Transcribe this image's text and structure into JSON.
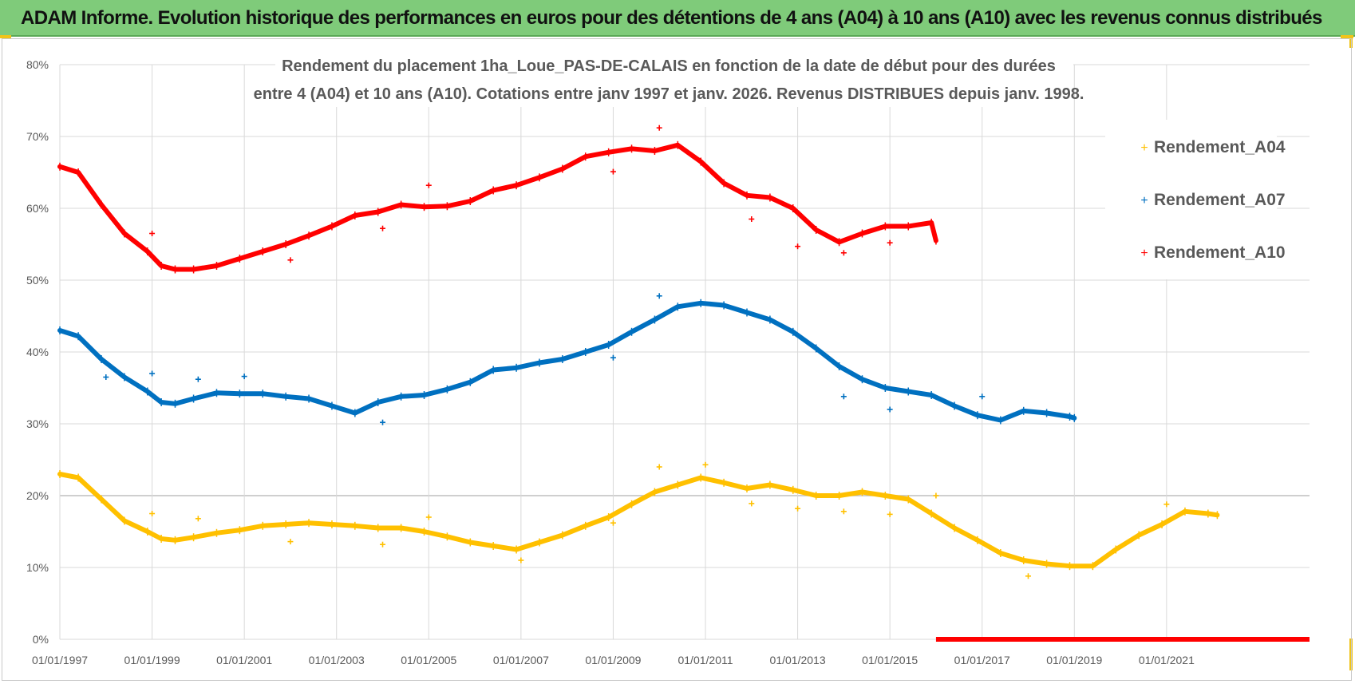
{
  "banner": {
    "title": "ADAM Informe. Evolution historique des performances en euros pour des détentions de 4 ans (A04) à 10 ans (A10) avec les revenus connus distribués"
  },
  "colors": {
    "banner_bg": "#7fcb7a",
    "A04": "#ffc000",
    "A07": "#0070c0",
    "A10": "#ff0000",
    "grid": "#d9d9d9",
    "text": "#595959"
  },
  "chart_data": {
    "type": "scatter",
    "title_line1": "Rendement du placement 1ha_Loue_PAS-DE-CALAIS en fonction de la date de début pour des durées",
    "title_line2": "entre 4 (A04) et 10 ans (A10). Cotations entre janv 1997 et janv. 2026. Revenus DISTRIBUES depuis janv. 1998.",
    "xlabel": "",
    "ylabel": "",
    "xlim": [
      1997.0,
      2024.1
    ],
    "ylim": [
      0,
      80
    ],
    "y_ticks": [
      0,
      10,
      20,
      30,
      40,
      50,
      60,
      70,
      80
    ],
    "y_tick_labels": [
      "0%",
      "10%",
      "20%",
      "30%",
      "40%",
      "50%",
      "60%",
      "70%",
      "80%"
    ],
    "x_ticks": [
      1997,
      1999,
      2001,
      2003,
      2005,
      2007,
      2009,
      2011,
      2013,
      2015,
      2017,
      2019,
      2021
    ],
    "x_tick_labels": [
      "01/01/1997",
      "01/01/1999",
      "01/01/2001",
      "01/01/2003",
      "01/01/2005",
      "01/01/2007",
      "01/01/2009",
      "01/01/2011",
      "01/01/2013",
      "01/01/2015",
      "01/01/2017",
      "01/01/2019",
      "01/01/2021"
    ],
    "legend": {
      "position": "top-right"
    },
    "series": [
      {
        "name": "Rendement_A04",
        "color": "#ffc000",
        "x": [
          1997.0,
          1997.4,
          1997.9,
          1998.4,
          1998.9,
          1999.2,
          1999.5,
          1999.9,
          2000.4,
          2000.9,
          2001.4,
          2001.9,
          2002.4,
          2002.9,
          2003.4,
          2003.9,
          2004.4,
          2004.9,
          2005.4,
          2005.9,
          2006.4,
          2006.9,
          2007.4,
          2007.9,
          2008.4,
          2008.9,
          2009.4,
          2009.9,
          2010.4,
          2010.9,
          2011.4,
          2011.9,
          2012.4,
          2012.9,
          2013.4,
          2013.9,
          2014.4,
          2014.9,
          2015.4,
          2015.9,
          2016.4,
          2016.9,
          2017.4,
          2017.9,
          2018.4,
          2018.9,
          2019.4,
          2019.9,
          2020.4,
          2020.9,
          2021.4,
          2021.9,
          2022.1
        ],
        "y": [
          23.0,
          22.5,
          19.5,
          16.5,
          15.0,
          14.0,
          13.8,
          14.2,
          14.8,
          15.2,
          15.8,
          16.0,
          16.2,
          16.0,
          15.8,
          15.5,
          15.5,
          15.0,
          14.3,
          13.5,
          13.0,
          12.5,
          13.5,
          14.5,
          15.8,
          17.0,
          18.8,
          20.5,
          21.5,
          22.5,
          21.8,
          21.0,
          21.5,
          20.8,
          20.0,
          20.0,
          20.5,
          20.0,
          19.5,
          17.5,
          15.5,
          13.8,
          12.0,
          11.0,
          10.5,
          10.2,
          10.2,
          12.5,
          14.5,
          16.0,
          17.8,
          17.5,
          17.3
        ],
        "outliers_x": [
          1999.0,
          2000.0,
          2002.0,
          2004.0,
          2005.0,
          2007.0,
          2009.0,
          2010.0,
          2011.0,
          2012.0,
          2013.0,
          2014.0,
          2015.0,
          2016.0,
          2018.0,
          2021.0
        ],
        "outliers_y": [
          17.5,
          16.8,
          13.6,
          13.2,
          17.0,
          11.0,
          16.2,
          24.0,
          24.3,
          18.9,
          18.2,
          17.8,
          17.4,
          20.0,
          8.8,
          18.8
        ]
      },
      {
        "name": "Rendement_A07",
        "color": "#0070c0",
        "x": [
          1997.0,
          1997.4,
          1997.9,
          1998.4,
          1998.9,
          1999.2,
          1999.5,
          1999.9,
          2000.4,
          2000.9,
          2001.4,
          2001.9,
          2002.4,
          2002.9,
          2003.4,
          2003.9,
          2004.4,
          2004.9,
          2005.4,
          2005.9,
          2006.4,
          2006.9,
          2007.4,
          2007.9,
          2008.4,
          2008.9,
          2009.4,
          2009.9,
          2010.4,
          2010.9,
          2011.4,
          2011.9,
          2012.4,
          2012.9,
          2013.4,
          2013.9,
          2014.4,
          2014.9,
          2015.4,
          2015.9,
          2016.4,
          2016.9,
          2017.4,
          2017.9,
          2018.4,
          2018.9,
          2019.0
        ],
        "y": [
          43.0,
          42.2,
          39.0,
          36.5,
          34.5,
          33.0,
          32.8,
          33.5,
          34.3,
          34.2,
          34.2,
          33.8,
          33.5,
          32.5,
          31.5,
          33.0,
          33.8,
          34.0,
          34.8,
          35.8,
          37.5,
          37.8,
          38.5,
          39.0,
          40.0,
          41.0,
          42.8,
          44.5,
          46.3,
          46.8,
          46.5,
          45.5,
          44.5,
          42.8,
          40.5,
          38.0,
          36.2,
          35.0,
          34.5,
          34.0,
          32.5,
          31.2,
          30.5,
          31.8,
          31.5,
          31.0,
          30.8
        ],
        "outliers_x": [
          1998.0,
          1999.0,
          2000.0,
          2001.0,
          2004.0,
          2009.0,
          2010.0,
          2014.0,
          2015.0,
          2017.0
        ],
        "outliers_y": [
          36.5,
          37.0,
          36.2,
          36.6,
          30.2,
          39.2,
          47.8,
          33.8,
          32.0,
          33.8
        ]
      },
      {
        "name": "Rendement_A10",
        "color": "#ff0000",
        "x": [
          1997.0,
          1997.4,
          1997.9,
          1998.4,
          1998.9,
          1999.2,
          1999.5,
          1999.9,
          2000.4,
          2000.9,
          2001.4,
          2001.9,
          2002.4,
          2002.9,
          2003.4,
          2003.9,
          2004.4,
          2004.9,
          2005.4,
          2005.9,
          2006.4,
          2006.9,
          2007.4,
          2007.9,
          2008.4,
          2008.9,
          2009.4,
          2009.9,
          2010.4,
          2010.9,
          2011.4,
          2011.9,
          2012.4,
          2012.9,
          2013.4,
          2013.9,
          2014.4,
          2014.9,
          2015.4,
          2015.9,
          2016.0
        ],
        "y": [
          65.8,
          65.0,
          60.5,
          56.5,
          54.0,
          52.0,
          51.5,
          51.5,
          52.0,
          53.0,
          54.0,
          55.0,
          56.2,
          57.5,
          59.0,
          59.5,
          60.5,
          60.2,
          60.3,
          61.0,
          62.5,
          63.2,
          64.3,
          65.5,
          67.2,
          67.8,
          68.3,
          68.0,
          68.8,
          66.5,
          63.5,
          61.8,
          61.5,
          60.0,
          57.0,
          55.3,
          56.5,
          57.5,
          57.5,
          58.0,
          55.5
        ],
        "outliers_x": [
          1999.0,
          2002.0,
          2004.0,
          2005.0,
          2009.0,
          2010.0,
          2012.0,
          2013.0,
          2014.0,
          2015.0
        ],
        "outliers_y": [
          56.5,
          52.8,
          57.2,
          63.2,
          65.1,
          71.2,
          58.5,
          54.7,
          53.8,
          55.2
        ],
        "zero_range": [
          2016.0,
          2024.1
        ]
      }
    ]
  }
}
